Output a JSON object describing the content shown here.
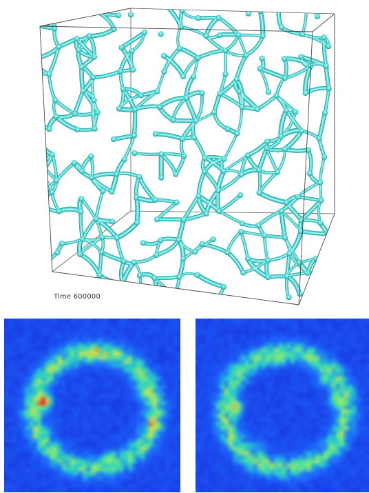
{
  "simulation": {
    "time_label": "Time",
    "time_value": "600000",
    "network_color": "#4fd6d2"
  },
  "spectra": {
    "colors": {
      "background": "#1630e6",
      "ring_low": "#2a8bff",
      "ring_mid": "#29d9c6",
      "ring_high": "#b8f04a",
      "hotspot": "#e5322b"
    }
  }
}
